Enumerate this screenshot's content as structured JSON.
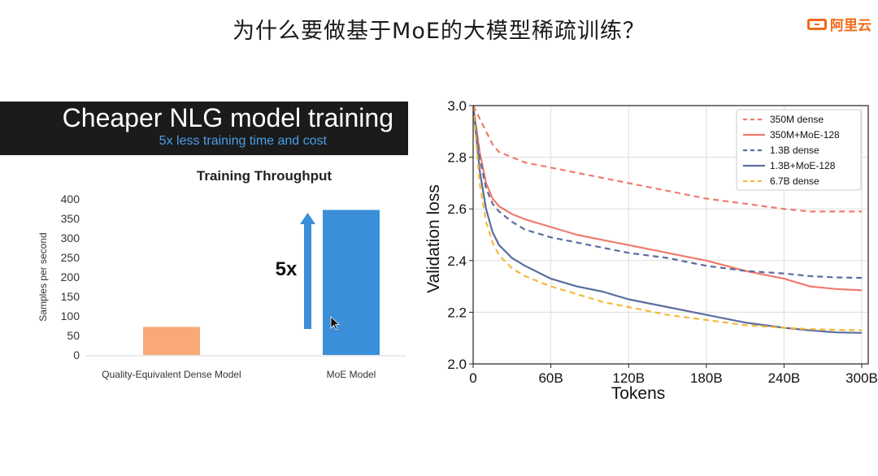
{
  "slide": {
    "title": "为什么要做基于MoE的大模型稀疏训练？",
    "logo_text": "阿里云",
    "logo_color": "#f06a19"
  },
  "left_panel": {
    "banner_title": "Cheaper NLG model training",
    "banner_subtitle": "5x less training time and cost",
    "banner_bg": "#1b1b1b",
    "subtitle_color": "#4a9fe8",
    "arrow_label": "5x",
    "arrow_color": "#3a8fd8"
  },
  "chart_data": [
    {
      "type": "bar",
      "title": "Training Throughput",
      "ylabel": "Samples per second",
      "xlabel": "",
      "categories": [
        "Quality-Equivalent Dense Model",
        "MoE Model"
      ],
      "values": [
        72,
        372
      ],
      "colors": [
        "#f9a977",
        "#3a8fd8"
      ],
      "ylim": [
        0,
        400
      ],
      "yticks": [
        0,
        50,
        100,
        150,
        200,
        250,
        300,
        350,
        400
      ],
      "grid": false
    },
    {
      "type": "line",
      "xlabel": "Tokens",
      "ylabel": "Validation loss",
      "xlim": [
        0,
        305
      ],
      "ylim": [
        2.0,
        3.0
      ],
      "xticks": [
        0,
        60,
        120,
        180,
        240,
        300
      ],
      "xtick_labels": [
        "0",
        "60B",
        "120B",
        "180B",
        "240B",
        "300B"
      ],
      "yticks": [
        2.0,
        2.2,
        2.4,
        2.6,
        2.8,
        3.0
      ],
      "ytick_labels": [
        "2.0",
        "2.2",
        "2.4",
        "2.6",
        "2.8",
        "3.0"
      ],
      "grid": true,
      "legend_position": "top-right",
      "series": [
        {
          "name": "350M dense",
          "color": "#f07a6e",
          "dash": true,
          "x": [
            0,
            5,
            10,
            15,
            20,
            30,
            40,
            60,
            80,
            100,
            120,
            150,
            180,
            210,
            240,
            260,
            280,
            300
          ],
          "y": [
            3.0,
            2.95,
            2.9,
            2.85,
            2.82,
            2.8,
            2.78,
            2.76,
            2.74,
            2.72,
            2.7,
            2.67,
            2.64,
            2.62,
            2.6,
            2.59,
            2.59,
            2.59
          ]
        },
        {
          "name": "350M+MoE-128",
          "color": "#f07a6e",
          "dash": false,
          "x": [
            0,
            5,
            10,
            15,
            20,
            30,
            40,
            60,
            80,
            100,
            120,
            150,
            180,
            210,
            240,
            260,
            280,
            300
          ],
          "y": [
            3.0,
            2.82,
            2.7,
            2.64,
            2.61,
            2.58,
            2.56,
            2.53,
            2.5,
            2.48,
            2.46,
            2.43,
            2.4,
            2.36,
            2.33,
            2.3,
            2.29,
            2.285
          ]
        },
        {
          "name": "1.3B dense",
          "color": "#5a6d9e",
          "dash": true,
          "x": [
            0,
            5,
            10,
            15,
            20,
            30,
            40,
            60,
            80,
            100,
            120,
            150,
            180,
            210,
            240,
            260,
            280,
            300
          ],
          "y": [
            3.0,
            2.8,
            2.68,
            2.62,
            2.59,
            2.55,
            2.52,
            2.49,
            2.47,
            2.45,
            2.43,
            2.41,
            2.38,
            2.36,
            2.35,
            2.34,
            2.335,
            2.333
          ]
        },
        {
          "name": "1.3B+MoE-128",
          "color": "#5a6d9e",
          "dash": false,
          "x": [
            0,
            5,
            10,
            15,
            20,
            30,
            40,
            60,
            80,
            100,
            120,
            150,
            180,
            210,
            240,
            260,
            280,
            300
          ],
          "y": [
            3.0,
            2.75,
            2.6,
            2.51,
            2.46,
            2.41,
            2.38,
            2.33,
            2.3,
            2.28,
            2.25,
            2.22,
            2.19,
            2.16,
            2.14,
            2.13,
            2.122,
            2.12
          ]
        },
        {
          "name": "6.7B dense",
          "color": "#f5b93a",
          "dash": true,
          "x": [
            0,
            5,
            10,
            15,
            20,
            30,
            40,
            60,
            80,
            100,
            120,
            150,
            180,
            210,
            240,
            260,
            280,
            300
          ],
          "y": [
            3.0,
            2.7,
            2.55,
            2.47,
            2.42,
            2.37,
            2.34,
            2.3,
            2.27,
            2.24,
            2.22,
            2.19,
            2.17,
            2.15,
            2.14,
            2.135,
            2.132,
            2.13
          ]
        }
      ]
    }
  ]
}
